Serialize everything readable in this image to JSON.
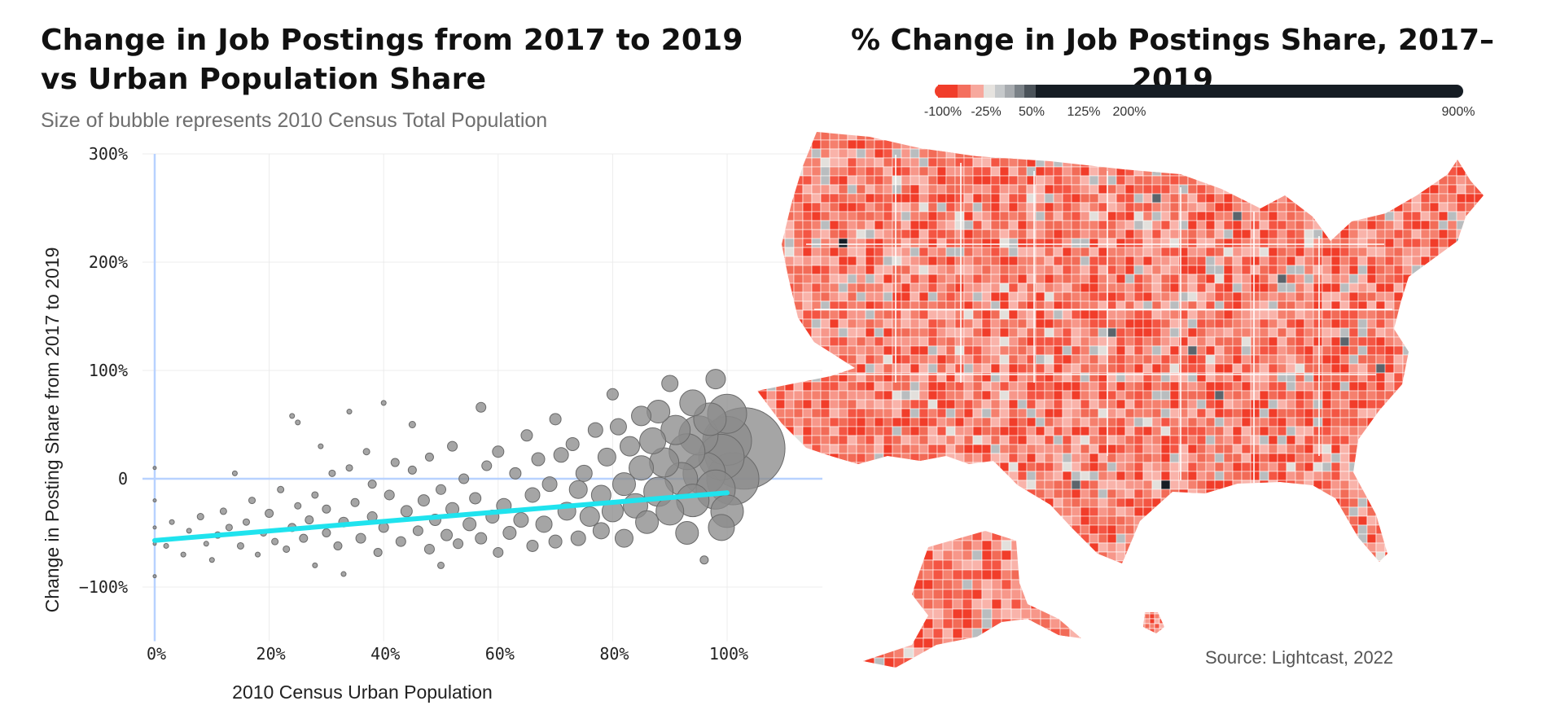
{
  "titles": {
    "left": "Change in Job Postings from 2017 to 2019 vs Urban Population Share",
    "left_subtitle": "Size of bubble represents 2010 Census Total Population",
    "right": "% Change in Job Postings Share, 2017–2019",
    "source": "Source: Lightcast, 2022"
  },
  "colors": {
    "bubble": "#8c8c8c",
    "bubble_stroke": "#6a6a6a",
    "trend": "#1fe3ee",
    "axis_highlight": "#b8d2ff",
    "grid": "#ececec",
    "map_base": "#f26b57",
    "map_light": "#f4a196",
    "map_gray": "#b9bdbf",
    "map_dark": "#161d24"
  },
  "chart_data": [
    {
      "type": "scatter",
      "title": "Change in Job Postings from 2017 to 2019 vs Urban Population Share",
      "subtitle": "Size of bubble represents 2010 Census Total Population",
      "xlabel": "2010 Census Urban Population",
      "ylabel": "Change in Posting Share from 2017 to 2019",
      "xlim": [
        0,
        1.17
      ],
      "ylim": [
        -1.5,
        3.0
      ],
      "xticks": [
        0,
        0.2,
        0.4,
        0.6,
        0.8,
        1.0
      ],
      "xtick_labels": [
        "0%",
        "20%",
        "40%",
        "60%",
        "80%",
        "100%"
      ],
      "yticks": [
        3.0,
        2.0,
        1.0,
        0.0,
        -1.0
      ],
      "ytick_labels": [
        "300%",
        "200%",
        "100%",
        "0",
        "−100%"
      ],
      "grid": true,
      "trend_line": {
        "x": [
          0,
          1.0
        ],
        "y": [
          -0.57,
          -0.13
        ]
      },
      "points": [
        {
          "x": 0.0,
          "y": -0.6,
          "size": 2
        },
        {
          "x": 0.0,
          "y": -0.2,
          "size": 2
        },
        {
          "x": 0.0,
          "y": -0.9,
          "size": 2
        },
        {
          "x": 0.0,
          "y": 0.1,
          "size": 2
        },
        {
          "x": 0.0,
          "y": -0.45,
          "size": 2
        },
        {
          "x": 0.02,
          "y": -0.62,
          "size": 3
        },
        {
          "x": 0.03,
          "y": -0.4,
          "size": 3
        },
        {
          "x": 0.05,
          "y": -0.7,
          "size": 3
        },
        {
          "x": 0.06,
          "y": -0.48,
          "size": 3
        },
        {
          "x": 0.08,
          "y": -0.35,
          "size": 4
        },
        {
          "x": 0.09,
          "y": -0.6,
          "size": 3
        },
        {
          "x": 0.1,
          "y": -0.75,
          "size": 3
        },
        {
          "x": 0.11,
          "y": -0.52,
          "size": 4
        },
        {
          "x": 0.12,
          "y": -0.3,
          "size": 4
        },
        {
          "x": 0.13,
          "y": -0.45,
          "size": 4
        },
        {
          "x": 0.14,
          "y": 0.05,
          "size": 3
        },
        {
          "x": 0.15,
          "y": -0.62,
          "size": 4
        },
        {
          "x": 0.16,
          "y": -0.4,
          "size": 4
        },
        {
          "x": 0.17,
          "y": -0.2,
          "size": 4
        },
        {
          "x": 0.18,
          "y": -0.7,
          "size": 3
        },
        {
          "x": 0.19,
          "y": -0.5,
          "size": 4
        },
        {
          "x": 0.2,
          "y": -0.32,
          "size": 5
        },
        {
          "x": 0.21,
          "y": -0.58,
          "size": 4
        },
        {
          "x": 0.22,
          "y": -0.1,
          "size": 4
        },
        {
          "x": 0.23,
          "y": -0.65,
          "size": 4
        },
        {
          "x": 0.24,
          "y": -0.45,
          "size": 5
        },
        {
          "x": 0.25,
          "y": -0.25,
          "size": 4
        },
        {
          "x": 0.24,
          "y": 0.58,
          "size": 3
        },
        {
          "x": 0.25,
          "y": 0.52,
          "size": 3
        },
        {
          "x": 0.26,
          "y": -0.55,
          "size": 5
        },
        {
          "x": 0.27,
          "y": -0.38,
          "size": 5
        },
        {
          "x": 0.28,
          "y": -0.15,
          "size": 4
        },
        {
          "x": 0.28,
          "y": -0.8,
          "size": 3
        },
        {
          "x": 0.29,
          "y": 0.3,
          "size": 3
        },
        {
          "x": 0.3,
          "y": -0.5,
          "size": 5
        },
        {
          "x": 0.3,
          "y": -0.28,
          "size": 5
        },
        {
          "x": 0.31,
          "y": 0.05,
          "size": 4
        },
        {
          "x": 0.32,
          "y": -0.62,
          "size": 5
        },
        {
          "x": 0.33,
          "y": -0.4,
          "size": 6
        },
        {
          "x": 0.33,
          "y": -0.88,
          "size": 3
        },
        {
          "x": 0.34,
          "y": 0.1,
          "size": 4
        },
        {
          "x": 0.34,
          "y": 0.62,
          "size": 3
        },
        {
          "x": 0.35,
          "y": -0.22,
          "size": 5
        },
        {
          "x": 0.36,
          "y": -0.55,
          "size": 6
        },
        {
          "x": 0.37,
          "y": 0.25,
          "size": 4
        },
        {
          "x": 0.38,
          "y": -0.35,
          "size": 6
        },
        {
          "x": 0.38,
          "y": -0.05,
          "size": 5
        },
        {
          "x": 0.39,
          "y": -0.68,
          "size": 5
        },
        {
          "x": 0.4,
          "y": -0.45,
          "size": 6
        },
        {
          "x": 0.4,
          "y": 0.7,
          "size": 3
        },
        {
          "x": 0.41,
          "y": -0.15,
          "size": 6
        },
        {
          "x": 0.42,
          "y": 0.15,
          "size": 5
        },
        {
          "x": 0.43,
          "y": -0.58,
          "size": 6
        },
        {
          "x": 0.44,
          "y": -0.3,
          "size": 7
        },
        {
          "x": 0.45,
          "y": 0.08,
          "size": 5
        },
        {
          "x": 0.45,
          "y": 0.5,
          "size": 4
        },
        {
          "x": 0.46,
          "y": -0.48,
          "size": 6
        },
        {
          "x": 0.47,
          "y": -0.2,
          "size": 7
        },
        {
          "x": 0.48,
          "y": -0.65,
          "size": 6
        },
        {
          "x": 0.48,
          "y": 0.2,
          "size": 5
        },
        {
          "x": 0.49,
          "y": -0.38,
          "size": 7
        },
        {
          "x": 0.5,
          "y": -0.1,
          "size": 6
        },
        {
          "x": 0.5,
          "y": -0.8,
          "size": 4
        },
        {
          "x": 0.51,
          "y": -0.52,
          "size": 7
        },
        {
          "x": 0.52,
          "y": 0.3,
          "size": 6
        },
        {
          "x": 0.52,
          "y": -0.28,
          "size": 8
        },
        {
          "x": 0.53,
          "y": -0.6,
          "size": 6
        },
        {
          "x": 0.54,
          "y": 0.0,
          "size": 6
        },
        {
          "x": 0.55,
          "y": -0.42,
          "size": 8
        },
        {
          "x": 0.56,
          "y": -0.18,
          "size": 7
        },
        {
          "x": 0.57,
          "y": 0.66,
          "size": 6
        },
        {
          "x": 0.57,
          "y": -0.55,
          "size": 7
        },
        {
          "x": 0.58,
          "y": 0.12,
          "size": 6
        },
        {
          "x": 0.59,
          "y": -0.35,
          "size": 8
        },
        {
          "x": 0.6,
          "y": -0.68,
          "size": 6
        },
        {
          "x": 0.6,
          "y": 0.25,
          "size": 7
        },
        {
          "x": 0.61,
          "y": -0.25,
          "size": 9
        },
        {
          "x": 0.62,
          "y": -0.5,
          "size": 8
        },
        {
          "x": 0.63,
          "y": 0.05,
          "size": 7
        },
        {
          "x": 0.64,
          "y": -0.38,
          "size": 9
        },
        {
          "x": 0.65,
          "y": 0.4,
          "size": 7
        },
        {
          "x": 0.66,
          "y": -0.15,
          "size": 9
        },
        {
          "x": 0.66,
          "y": -0.62,
          "size": 7
        },
        {
          "x": 0.67,
          "y": 0.18,
          "size": 8
        },
        {
          "x": 0.68,
          "y": -0.42,
          "size": 10
        },
        {
          "x": 0.69,
          "y": -0.05,
          "size": 9
        },
        {
          "x": 0.7,
          "y": 0.55,
          "size": 7
        },
        {
          "x": 0.7,
          "y": -0.58,
          "size": 8
        },
        {
          "x": 0.71,
          "y": 0.22,
          "size": 9
        },
        {
          "x": 0.72,
          "y": -0.3,
          "size": 11
        },
        {
          "x": 0.73,
          "y": 0.32,
          "size": 8
        },
        {
          "x": 0.74,
          "y": -0.1,
          "size": 11
        },
        {
          "x": 0.74,
          "y": -0.55,
          "size": 9
        },
        {
          "x": 0.75,
          "y": 0.05,
          "size": 10
        },
        {
          "x": 0.76,
          "y": -0.35,
          "size": 12
        },
        {
          "x": 0.77,
          "y": 0.45,
          "size": 9
        },
        {
          "x": 0.78,
          "y": -0.15,
          "size": 12
        },
        {
          "x": 0.78,
          "y": -0.48,
          "size": 10
        },
        {
          "x": 0.79,
          "y": 0.2,
          "size": 11
        },
        {
          "x": 0.8,
          "y": 0.78,
          "size": 7
        },
        {
          "x": 0.8,
          "y": -0.3,
          "size": 13
        },
        {
          "x": 0.81,
          "y": 0.48,
          "size": 10
        },
        {
          "x": 0.82,
          "y": -0.05,
          "size": 14
        },
        {
          "x": 0.82,
          "y": -0.55,
          "size": 11
        },
        {
          "x": 0.83,
          "y": 0.3,
          "size": 12
        },
        {
          "x": 0.84,
          "y": -0.25,
          "size": 15
        },
        {
          "x": 0.85,
          "y": 0.58,
          "size": 12
        },
        {
          "x": 0.85,
          "y": 0.1,
          "size": 15
        },
        {
          "x": 0.86,
          "y": -0.4,
          "size": 14
        },
        {
          "x": 0.87,
          "y": 0.35,
          "size": 16
        },
        {
          "x": 0.88,
          "y": -0.12,
          "size": 18
        },
        {
          "x": 0.88,
          "y": 0.62,
          "size": 14
        },
        {
          "x": 0.89,
          "y": 0.15,
          "size": 18
        },
        {
          "x": 0.9,
          "y": -0.3,
          "size": 17
        },
        {
          "x": 0.9,
          "y": 0.88,
          "size": 10
        },
        {
          "x": 0.91,
          "y": 0.45,
          "size": 18
        },
        {
          "x": 0.92,
          "y": 0.0,
          "size": 20
        },
        {
          "x": 0.93,
          "y": 0.25,
          "size": 22
        },
        {
          "x": 0.94,
          "y": -0.2,
          "size": 20
        },
        {
          "x": 0.94,
          "y": 0.7,
          "size": 16
        },
        {
          "x": 0.95,
          "y": 0.4,
          "size": 24
        },
        {
          "x": 0.96,
          "y": 0.05,
          "size": 26
        },
        {
          "x": 0.97,
          "y": 0.55,
          "size": 20
        },
        {
          "x": 0.98,
          "y": -0.1,
          "size": 24
        },
        {
          "x": 0.98,
          "y": 0.92,
          "size": 12
        },
        {
          "x": 0.99,
          "y": 0.2,
          "size": 28
        },
        {
          "x": 1.0,
          "y": 0.35,
          "size": 30
        },
        {
          "x": 1.0,
          "y": -0.3,
          "size": 20
        },
        {
          "x": 1.0,
          "y": 0.6,
          "size": 24
        },
        {
          "x": 1.01,
          "y": 0.0,
          "size": 32
        },
        {
          "x": 1.03,
          "y": 0.28,
          "size": 50
        },
        {
          "x": 0.99,
          "y": -0.45,
          "size": 16
        },
        {
          "x": 0.96,
          "y": -0.75,
          "size": 5
        },
        {
          "x": 0.93,
          "y": -0.5,
          "size": 14
        }
      ]
    },
    {
      "type": "heatmap",
      "title": "% Change in Job Postings Share, 2017–2019",
      "legend": {
        "tick_labels": [
          "-100%",
          "-25%",
          "50%",
          "125%",
          "200%",
          "900%"
        ],
        "colors": [
          "#f13d2a",
          "#f46f5e",
          "#f7a89d",
          "#e6e3df",
          "#c6c9cb",
          "#a7abaf",
          "#7a8187",
          "#4a5259",
          "#161d24"
        ]
      }
    }
  ]
}
